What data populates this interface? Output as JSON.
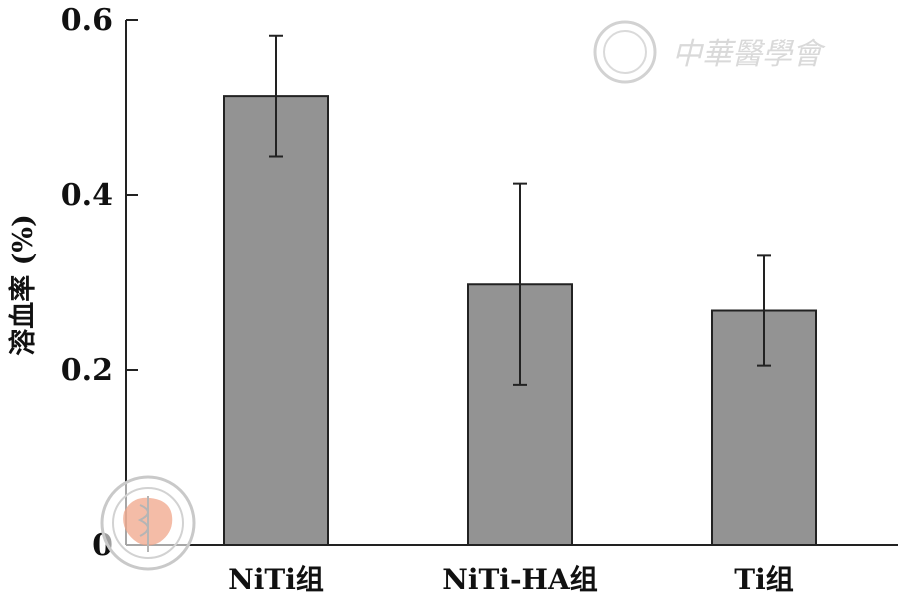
{
  "chart_data": {
    "type": "bar",
    "categories": [
      "NiTi组",
      "NiTi-HA组",
      "Ti组"
    ],
    "values": [
      0.513,
      0.298,
      0.268
    ],
    "errors": [
      0.069,
      0.115,
      0.063
    ],
    "ylabel": "溶血率 (%)",
    "ylim": [
      0,
      0.6
    ],
    "yticks": [
      0,
      0.2,
      0.4,
      0.6
    ],
    "ytick_labels": [
      "0",
      "0.2",
      "0.4",
      "0.6"
    ],
    "grid": false,
    "bar_color": "#939393",
    "edge_color": "#222222"
  },
  "watermark": {
    "text": "中華醫學會",
    "seal_color": "#c8c8c8",
    "logo_color": "#f0a58a"
  }
}
